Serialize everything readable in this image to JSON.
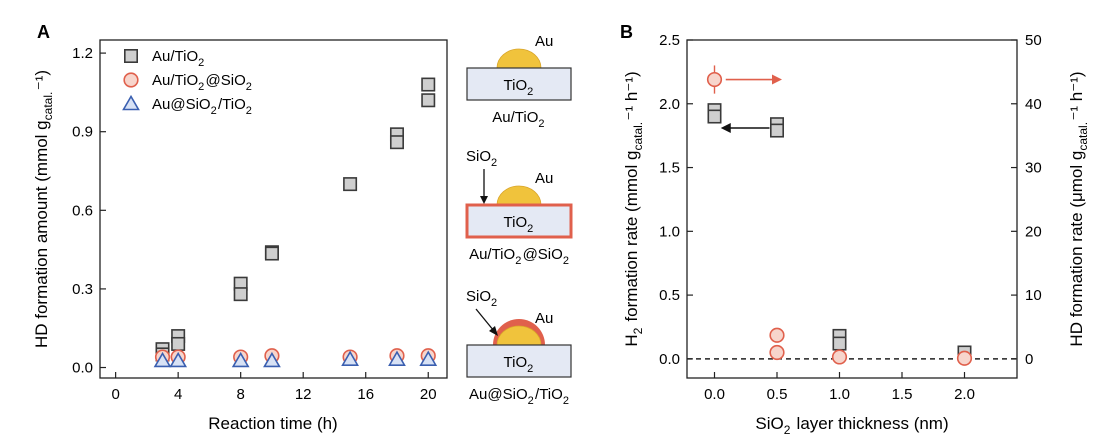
{
  "chart_data": [
    {
      "panel_label": "A",
      "type": "scatter",
      "xlabel": "Reaction time (h)",
      "ylabel": {
        "main": "HD formation amount (mmol g",
        "sub": "catal.",
        "tail": "⁻¹)"
      },
      "xlim": [
        -1,
        21.2
      ],
      "ylim": [
        -0.04,
        1.25
      ],
      "xticks": [
        0,
        4,
        8,
        12,
        16,
        20
      ],
      "yticks": [
        0.0,
        0.3,
        0.6,
        0.9,
        1.2
      ],
      "ytick_labels": [
        "0.0",
        "0.3",
        "0.6",
        "0.9",
        "1.2"
      ],
      "grid": false,
      "legend_position": "top-left",
      "series": [
        {
          "name": {
            "main": "Au/TiO",
            "sub": "2",
            "tail": ""
          },
          "marker": "square",
          "color": "#3a3a3a",
          "fill": "#cfcfcf",
          "points": [
            [
              3,
              0.07
            ],
            [
              3,
              0.05
            ],
            [
              4,
              0.12
            ],
            [
              4,
              0.09
            ],
            [
              8,
              0.32
            ],
            [
              8,
              0.28
            ],
            [
              10,
              0.44
            ],
            [
              10,
              0.435
            ],
            [
              15,
              0.7
            ],
            [
              18,
              0.89
            ],
            [
              18,
              0.86
            ],
            [
              20,
              1.08
            ],
            [
              20,
              1.02
            ]
          ]
        },
        {
          "name": {
            "main": "Au/TiO",
            "sub": "2",
            "tail": "@SiO",
            "sub2": "2"
          },
          "marker": "circle",
          "color": "#e0604c",
          "fill": "#f7d5cc",
          "points": [
            [
              3,
              0.04
            ],
            [
              4,
              0.04
            ],
            [
              8,
              0.04
            ],
            [
              10,
              0.045
            ],
            [
              15,
              0.04
            ],
            [
              18,
              0.045
            ],
            [
              20,
              0.045
            ]
          ]
        },
        {
          "name": {
            "main": "Au@SiO",
            "sub": "2",
            "tail": "/TiO",
            "sub2": "2"
          },
          "marker": "triangle",
          "color": "#3a5fb0",
          "fill": "#d8e2f5",
          "points": [
            [
              3,
              0.025
            ],
            [
              4,
              0.025
            ],
            [
              8,
              0.025
            ],
            [
              10,
              0.025
            ],
            [
              15,
              0.03
            ],
            [
              18,
              0.03
            ],
            [
              20,
              0.03
            ]
          ]
        }
      ]
    },
    {
      "panel_label": "B",
      "type": "scatter",
      "xlabel": {
        "main": "SiO",
        "sub": "2",
        "tail": " layer thickness (nm)"
      },
      "ylabel_left": {
        "pre": "H",
        "presub": "2",
        "main": " formation rate (mmol g",
        "sub": "catal.",
        "tail": "⁻¹ h⁻¹)"
      },
      "ylabel_right": {
        "main": "HD formation rate (μmol g",
        "sub": "catal.",
        "tail": "⁻¹ h⁻¹)"
      },
      "xlim": [
        -0.22,
        2.42
      ],
      "ylim_left": [
        -0.15,
        2.5
      ],
      "ylim_right": [
        -3,
        50
      ],
      "xticks": [
        0.0,
        0.5,
        1.0,
        1.5,
        2.0
      ],
      "xtick_labels": [
        "0.0",
        "0.5",
        "1.0",
        "1.5",
        "2.0"
      ],
      "yticks_left": [
        0.0,
        0.5,
        1.0,
        1.5,
        2.0,
        2.5
      ],
      "ytick_labels_left": [
        "0.0",
        "0.5",
        "1.0",
        "1.5",
        "2.0",
        "2.5"
      ],
      "yticks_right": [
        0,
        10,
        20,
        30,
        40,
        50
      ],
      "ytick_labels_right": [
        "0",
        "10",
        "20",
        "30",
        "40",
        "50"
      ],
      "baseline_y": 0,
      "series": [
        {
          "marker": "square",
          "axis": "left",
          "color": "#3a3a3a",
          "fill": "#cfcfcf",
          "points": [
            [
              0.0,
              1.95
            ],
            [
              0.0,
              1.9
            ],
            [
              0.5,
              1.84
            ],
            [
              0.5,
              1.79
            ],
            [
              1.0,
              0.18
            ],
            [
              1.0,
              0.12
            ],
            [
              2.0,
              0.05
            ]
          ]
        },
        {
          "marker": "circle",
          "axis": "right",
          "color": "#e0604c",
          "fill": "#f7d5cc",
          "points": [
            [
              0.0,
              43.8
            ],
            [
              0.5,
              3.7
            ],
            [
              0.5,
              1.0
            ],
            [
              1.0,
              0.3
            ],
            [
              2.0,
              0.1
            ]
          ],
          "error_bars": [
            [
              0.0,
              43.8,
              0.8
            ]
          ]
        }
      ],
      "arrows": [
        {
          "color": "#e0604c",
          "axis": "right",
          "from": [
            0.09,
            43.8
          ],
          "to": [
            0.54,
            43.8
          ]
        },
        {
          "color": "#111111",
          "axis": "left",
          "from": [
            0.44,
            1.81
          ],
          "to": [
            0.05,
            1.81
          ]
        }
      ]
    }
  ],
  "schematics": [
    {
      "metal": "Au",
      "support": {
        "main": "TiO",
        "sub": "2"
      },
      "caption": {
        "main": "Au/TiO",
        "sub": "2",
        "tail": ""
      },
      "shell_label": null
    },
    {
      "metal": "Au",
      "support": {
        "main": "TiO",
        "sub": "2"
      },
      "caption": {
        "main": "Au/TiO",
        "sub": "2",
        "tail": "@SiO",
        "sub2": "2"
      },
      "shell_label": {
        "main": "SiO",
        "sub": "2"
      }
    },
    {
      "metal": "Au",
      "support": {
        "main": "TiO",
        "sub": "2"
      },
      "caption": {
        "main": "Au@SiO",
        "sub": "2",
        "tail": "/TiO",
        "sub2": "2"
      },
      "shell_label": {
        "main": "SiO",
        "sub": "2"
      }
    }
  ],
  "colors": {
    "gold": "#f0c33c",
    "gold_edge": "#d9a52a",
    "support_fill": "#e4e9f4",
    "shell": "#e0604c"
  }
}
